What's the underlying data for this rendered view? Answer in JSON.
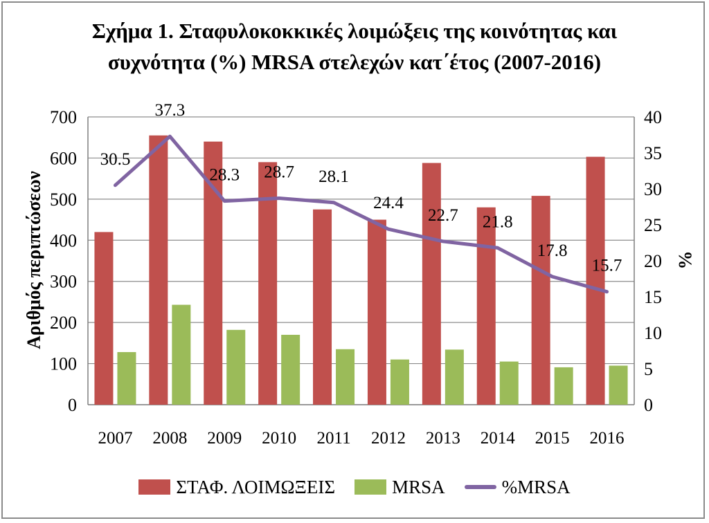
{
  "chart_data": {
    "type": "bar",
    "title_line1": "Σχήμα 1. Σταφυλοκοκκικές λοιμώξεις της κοινότητας και",
    "title_line2": "συχνότητα (%) MRSA στελεχών κατ΄έτος (2007-2016)",
    "ylabel": "Αριθμός περιπτώσεων",
    "y2label": "%",
    "categories": [
      "2007",
      "2008",
      "2009",
      "2010",
      "2011",
      "2012",
      "2013",
      "2014",
      "2015",
      "2016"
    ],
    "ylim": [
      0,
      700
    ],
    "yticks": [
      "0",
      "100",
      "200",
      "300",
      "400",
      "500",
      "600",
      "700"
    ],
    "y2lim": [
      0,
      40
    ],
    "y2ticks": [
      "0",
      "5",
      "10",
      "15",
      "20",
      "25",
      "30",
      "35",
      "40"
    ],
    "grid": true,
    "legend_position": "bottom",
    "series": [
      {
        "name": "ΣΤΑΦ. ΛΟΙΜΩΞΕΙΣ",
        "type": "bar",
        "axis": "left",
        "color": "#c0504d",
        "values": [
          420,
          655,
          640,
          590,
          475,
          450,
          588,
          480,
          508,
          603
        ]
      },
      {
        "name": "MRSA",
        "type": "bar",
        "axis": "left",
        "color": "#9bbb59",
        "values": [
          128,
          243,
          182,
          170,
          135,
          110,
          134,
          105,
          91,
          95
        ]
      },
      {
        "name": "%MRSA",
        "type": "line",
        "axis": "right",
        "color": "#8064a2",
        "values": [
          30.5,
          37.3,
          28.3,
          28.7,
          28.1,
          24.4,
          22.7,
          21.8,
          17.8,
          15.7
        ],
        "labels": [
          "30.5",
          "37.3",
          "28.3",
          "28.7",
          "28.1",
          "24.4",
          "22.7",
          "21.8",
          "17.8",
          "15.7"
        ]
      }
    ]
  }
}
